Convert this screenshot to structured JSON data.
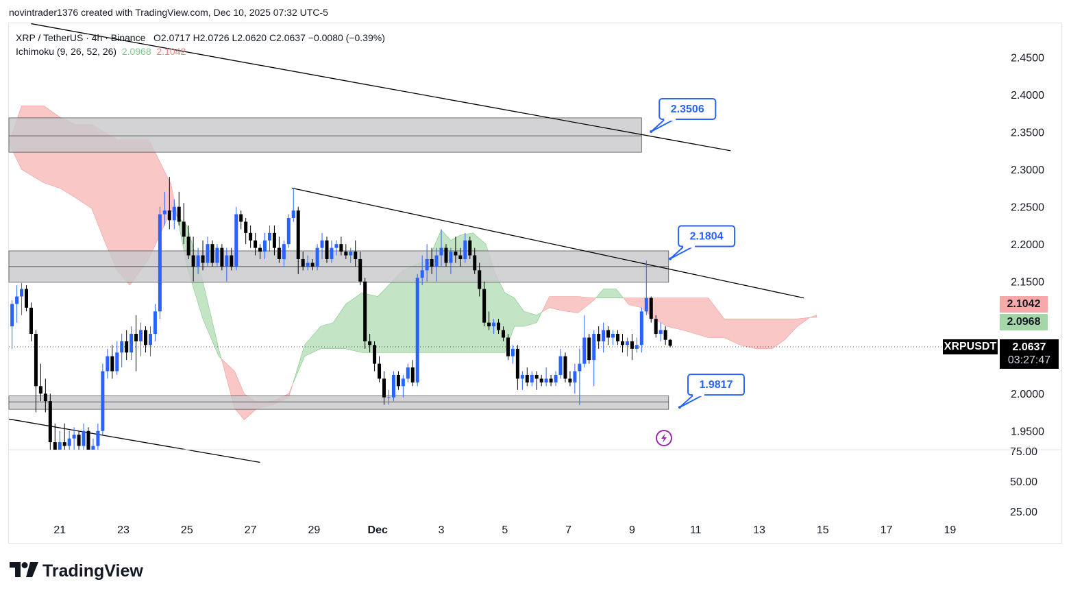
{
  "credit": "novintrader1376 created with TradingView.com, Dec 10, 2025 07:32 UTC-5",
  "legend": {
    "symbol_line": "XRP / TetherUS · 4h · Binance",
    "ohlc": "O2.0717  H2.0726  L2.0620  C2.0637  −0.0080 (−0.39%)",
    "ichimoku_name": "Ichimoku (9, 26, 52, 26)",
    "ichimoku_a": "2.0968",
    "ichimoku_b": "2.1042"
  },
  "price_labels": {
    "span_b": "2.1042",
    "span_a": "2.0968",
    "ticker": "XRPUSDT",
    "last": "2.0637",
    "countdown": "03:27:47"
  },
  "logo": "TradingView",
  "colors": {
    "up": "#2962ff",
    "down": "#000000",
    "cloud_bull": "#a5d6a7",
    "cloud_bear": "#f7a9a9",
    "zone": "#c8c8cc",
    "callout": "#2962ff"
  },
  "chart_data": {
    "type": "candlestick",
    "title": "XRP / TetherUS · 4h · Binance",
    "y_ticks": [
      "2.4500",
      "2.4000",
      "2.3500",
      "2.3000",
      "2.2500",
      "2.2000",
      "2.1500",
      "2.1000",
      "2.0500",
      "2.0000",
      "1.9500"
    ],
    "y_tick_values": [
      2.45,
      2.4,
      2.35,
      2.3,
      2.25,
      2.2,
      2.15,
      2.1,
      2.05,
      2.0,
      1.95
    ],
    "ylim": [
      1.925,
      2.49
    ],
    "x_ticks": [
      "21",
      "23",
      "25",
      "27",
      "29",
      "Dec",
      "3",
      "5",
      "7",
      "9",
      "11",
      "13",
      "15",
      "17",
      "19"
    ],
    "x_tick_days": [
      -10,
      -8,
      -6,
      -4,
      -2,
      0,
      2,
      4,
      6,
      8,
      10,
      12,
      14,
      16,
      18
    ],
    "xlim_days": [
      -11.6,
      19.5
    ],
    "volume_ticks": [
      "75.00",
      "50.00",
      "25.00"
    ],
    "zones": [
      {
        "low": 2.323,
        "high": 2.369,
        "mid": 2.345,
        "from_day": -11.6,
        "to_day": 8.3
      },
      {
        "low": 2.149,
        "high": 2.191,
        "mid": 2.17,
        "from_day": -11.6,
        "to_day": 9.15
      },
      {
        "low": 1.979,
        "high": 1.997,
        "mid": 1.989,
        "from_day": -11.6,
        "to_day": 9.15
      }
    ],
    "trendlines": [
      {
        "d1": -10.9,
        "p1": 2.495,
        "d2": 11.1,
        "p2": 2.325
      },
      {
        "d1": -2.7,
        "p1": 2.275,
        "d2": 13.4,
        "p2": 2.128
      },
      {
        "d1": -11.6,
        "p1": 1.966,
        "d2": -3.7,
        "p2": 1.908
      }
    ],
    "callouts": [
      {
        "label": "2.3506",
        "day": 8.6,
        "price": 2.3506
      },
      {
        "label": "2.1804",
        "day": 9.2,
        "price": 2.1804
      },
      {
        "label": "1.9817",
        "day": 9.5,
        "price": 1.9817
      }
    ],
    "cloud": {
      "days": [
        -11.6,
        -11.2,
        -10.5,
        -10.0,
        -9.5,
        -9.0,
        -8.6,
        -8.2,
        -7.8,
        -7.2,
        -6.5,
        -6.0,
        -5.5,
        -5.0,
        -4.5,
        -4.2,
        -3.8,
        -3.3,
        -2.8,
        -2.3,
        -1.8,
        -1.4,
        -1.0,
        -0.5,
        0.0,
        0.8,
        1.6,
        2.0,
        2.3,
        2.6,
        3.0,
        3.4,
        3.7,
        4.0,
        4.3,
        4.6,
        5.0,
        5.4,
        5.8,
        6.3,
        6.8,
        7.1,
        7.5,
        7.9,
        8.3,
        8.7,
        9.1,
        9.6,
        10.0,
        10.4,
        10.9,
        11.4,
        11.9,
        12.4,
        12.8,
        13.2,
        13.6,
        13.8
      ],
      "span_a": [
        2.335,
        2.3,
        2.282,
        2.275,
        2.262,
        2.248,
        2.205,
        2.165,
        2.145,
        2.18,
        2.245,
        2.225,
        2.15,
        2.06,
        1.98,
        1.965,
        1.98,
        1.985,
        1.995,
        2.065,
        2.09,
        2.095,
        2.12,
        2.135,
        2.13,
        2.165,
        2.18,
        2.219,
        2.205,
        2.212,
        2.215,
        2.2,
        2.16,
        2.135,
        2.128,
        2.11,
        2.105,
        2.115,
        2.111,
        2.108,
        2.125,
        2.14,
        2.14,
        2.119,
        2.115,
        2.1,
        2.09,
        2.085,
        2.08,
        2.075,
        2.075,
        2.065,
        2.06,
        2.06,
        2.072,
        2.09,
        2.102,
        2.102
      ],
      "span_b": [
        2.335,
        2.385,
        2.385,
        2.37,
        2.36,
        2.36,
        2.35,
        2.34,
        2.34,
        2.34,
        2.28,
        2.17,
        2.1,
        2.05,
        2.03,
        2.0,
        1.988,
        1.99,
        2.0,
        2.05,
        2.06,
        2.06,
        2.06,
        2.055,
        2.055,
        2.055,
        2.055,
        2.055,
        2.055,
        2.055,
        2.055,
        2.055,
        2.055,
        2.055,
        2.09,
        2.09,
        2.095,
        2.13,
        2.13,
        2.13,
        2.128,
        2.128,
        2.128,
        2.128,
        2.128,
        2.128,
        2.128,
        2.128,
        2.128,
        2.128,
        2.1,
        2.1,
        2.1,
        2.1,
        2.1,
        2.1,
        2.102,
        2.105
      ]
    },
    "candles": [
      [
        -11.5,
        2.09,
        2.125,
        2.06,
        2.12
      ],
      [
        -11.35,
        2.12,
        2.145,
        2.095,
        2.13
      ],
      [
        -11.2,
        2.13,
        2.148,
        2.105,
        2.14
      ],
      [
        -11.05,
        2.14,
        2.145,
        2.11,
        2.115
      ],
      [
        -10.9,
        2.115,
        2.122,
        2.07,
        2.08
      ],
      [
        -10.75,
        2.08,
        2.085,
        1.975,
        2.01
      ],
      [
        -10.6,
        2.01,
        2.04,
        1.99,
        2.0
      ],
      [
        -10.45,
        2.0,
        2.02,
        1.975,
        1.99
      ],
      [
        -10.3,
        1.99,
        2.0,
        1.92,
        1.935
      ],
      [
        -10.15,
        1.935,
        1.96,
        1.915,
        1.925
      ],
      [
        -10.0,
        1.925,
        1.95,
        1.91,
        1.935
      ],
      [
        -9.85,
        1.935,
        1.96,
        1.92,
        1.93
      ],
      [
        -9.7,
        1.93,
        1.95,
        1.91,
        1.94
      ],
      [
        -9.55,
        1.94,
        1.955,
        1.92,
        1.945
      ],
      [
        -9.4,
        1.945,
        1.95,
        1.915,
        1.93
      ],
      [
        -9.25,
        1.93,
        1.96,
        1.925,
        1.95
      ],
      [
        -9.1,
        1.95,
        1.955,
        1.915,
        1.925
      ],
      [
        -8.95,
        1.925,
        1.94,
        1.915,
        1.93
      ],
      [
        -8.8,
        1.93,
        1.96,
        1.925,
        1.95
      ],
      [
        -8.65,
        1.95,
        2.04,
        1.945,
        2.03
      ],
      [
        -8.5,
        2.03,
        2.06,
        2.02,
        2.05
      ],
      [
        -8.35,
        2.05,
        2.065,
        2.02,
        2.03
      ],
      [
        -8.2,
        2.03,
        2.07,
        2.025,
        2.055
      ],
      [
        -8.05,
        2.055,
        2.08,
        2.035,
        2.07
      ],
      [
        -7.9,
        2.07,
        2.085,
        2.045,
        2.055
      ],
      [
        -7.75,
        2.055,
        2.09,
        2.045,
        2.08
      ],
      [
        -7.6,
        2.08,
        2.105,
        2.03,
        2.07
      ],
      [
        -7.45,
        2.07,
        2.095,
        2.05,
        2.085
      ],
      [
        -7.3,
        2.085,
        2.09,
        2.055,
        2.065
      ],
      [
        -7.15,
        2.065,
        2.09,
        2.05,
        2.08
      ],
      [
        -7.0,
        2.08,
        2.12,
        2.07,
        2.11
      ],
      [
        -6.85,
        2.11,
        2.25,
        2.1,
        2.24
      ],
      [
        -6.7,
        2.24,
        2.27,
        2.225,
        2.245
      ],
      [
        -6.55,
        2.245,
        2.29,
        2.22,
        2.232
      ],
      [
        -6.4,
        2.232,
        2.26,
        2.22,
        2.25
      ],
      [
        -6.25,
        2.25,
        2.27,
        2.225,
        2.23
      ],
      [
        -6.1,
        2.23,
        2.255,
        2.2,
        2.21
      ],
      [
        -5.95,
        2.21,
        2.225,
        2.18,
        2.185
      ],
      [
        -5.8,
        2.185,
        2.21,
        2.15,
        2.17
      ],
      [
        -5.65,
        2.17,
        2.195,
        2.16,
        2.185
      ],
      [
        -5.5,
        2.185,
        2.205,
        2.165,
        2.175
      ],
      [
        -5.35,
        2.175,
        2.21,
        2.17,
        2.2
      ],
      [
        -5.2,
        2.2,
        2.205,
        2.17,
        2.175
      ],
      [
        -5.05,
        2.175,
        2.2,
        2.17,
        2.195
      ],
      [
        -4.9,
        2.195,
        2.2,
        2.165,
        2.17
      ],
      [
        -4.75,
        2.17,
        2.195,
        2.15,
        2.185
      ],
      [
        -4.6,
        2.185,
        2.195,
        2.165,
        2.17
      ],
      [
        -4.45,
        2.17,
        2.25,
        2.165,
        2.24
      ],
      [
        -4.3,
        2.24,
        2.245,
        2.22,
        2.23
      ],
      [
        -4.15,
        2.23,
        2.235,
        2.2,
        2.215
      ],
      [
        -4.0,
        2.215,
        2.225,
        2.195,
        2.205
      ],
      [
        -3.85,
        2.205,
        2.215,
        2.185,
        2.195
      ],
      [
        -3.7,
        2.195,
        2.2,
        2.18,
        2.19
      ],
      [
        -3.55,
        2.19,
        2.215,
        2.18,
        2.205
      ],
      [
        -3.4,
        2.205,
        2.225,
        2.19,
        2.215
      ],
      [
        -3.25,
        2.215,
        2.225,
        2.185,
        2.195
      ],
      [
        -3.1,
        2.195,
        2.21,
        2.175,
        2.18
      ],
      [
        -2.95,
        2.18,
        2.205,
        2.17,
        2.2
      ],
      [
        -2.8,
        2.2,
        2.24,
        2.195,
        2.235
      ],
      [
        -2.65,
        2.235,
        2.275,
        2.23,
        2.245
      ],
      [
        -2.5,
        2.245,
        2.25,
        2.16,
        2.18
      ],
      [
        -2.35,
        2.18,
        2.19,
        2.165,
        2.17
      ],
      [
        -2.2,
        2.17,
        2.185,
        2.165,
        2.175
      ],
      [
        -2.05,
        2.175,
        2.18,
        2.165,
        2.17
      ],
      [
        -1.9,
        2.17,
        2.2,
        2.165,
        2.195
      ],
      [
        -1.75,
        2.195,
        2.215,
        2.18,
        2.205
      ],
      [
        -1.6,
        2.205,
        2.21,
        2.175,
        2.18
      ],
      [
        -1.45,
        2.18,
        2.205,
        2.175,
        2.195
      ],
      [
        -1.3,
        2.195,
        2.205,
        2.185,
        2.2
      ],
      [
        -1.15,
        2.2,
        2.21,
        2.185,
        2.19
      ],
      [
        -1.0,
        2.19,
        2.2,
        2.18,
        2.185
      ],
      [
        -0.85,
        2.185,
        2.195,
        2.175,
        2.19
      ],
      [
        -0.7,
        2.19,
        2.205,
        2.17,
        2.18
      ],
      [
        -0.55,
        2.18,
        2.19,
        2.145,
        2.15
      ],
      [
        -0.4,
        2.15,
        2.155,
        2.06,
        2.07
      ],
      [
        -0.25,
        2.07,
        2.08,
        2.055,
        2.065
      ],
      [
        -0.1,
        2.065,
        2.07,
        2.03,
        2.04
      ],
      [
        0.05,
        2.04,
        2.05,
        2.015,
        2.02
      ],
      [
        0.2,
        2.02,
        2.03,
        1.985,
        1.995
      ],
      [
        0.35,
        1.995,
        2.005,
        1.985,
        1.995
      ],
      [
        0.5,
        1.995,
        2.03,
        1.99,
        2.025
      ],
      [
        0.65,
        2.025,
        2.03,
        2.005,
        2.01
      ],
      [
        0.8,
        2.01,
        2.025,
        1.995,
        2.02
      ],
      [
        0.95,
        2.02,
        2.04,
        2.015,
        2.035
      ],
      [
        1.1,
        2.035,
        2.045,
        2.01,
        2.015
      ],
      [
        1.25,
        2.015,
        2.16,
        2.01,
        2.155
      ],
      [
        1.4,
        2.155,
        2.185,
        2.145,
        2.165
      ],
      [
        1.55,
        2.165,
        2.2,
        2.15,
        2.18
      ],
      [
        1.7,
        2.18,
        2.195,
        2.16,
        2.17
      ],
      [
        1.85,
        2.17,
        2.195,
        2.15,
        2.185
      ],
      [
        2.0,
        2.185,
        2.22,
        2.17,
        2.195
      ],
      [
        2.15,
        2.195,
        2.2,
        2.17,
        2.175
      ],
      [
        2.3,
        2.175,
        2.195,
        2.16,
        2.19
      ],
      [
        2.45,
        2.19,
        2.21,
        2.175,
        2.185
      ],
      [
        2.6,
        2.185,
        2.195,
        2.17,
        2.18
      ],
      [
        2.75,
        2.18,
        2.215,
        2.175,
        2.205
      ],
      [
        2.9,
        2.205,
        2.21,
        2.18,
        2.185
      ],
      [
        3.05,
        2.185,
        2.195,
        2.16,
        2.165
      ],
      [
        3.2,
        2.165,
        2.175,
        2.13,
        2.14
      ],
      [
        3.35,
        2.14,
        2.15,
        2.09,
        2.095
      ],
      [
        3.5,
        2.095,
        2.11,
        2.085,
        2.09
      ],
      [
        3.65,
        2.09,
        2.1,
        2.08,
        2.095
      ],
      [
        3.8,
        2.095,
        2.1,
        2.08,
        2.085
      ],
      [
        3.95,
        2.085,
        2.09,
        2.07,
        2.075
      ],
      [
        4.1,
        2.075,
        2.08,
        2.045,
        2.05
      ],
      [
        4.25,
        2.05,
        2.065,
        2.04,
        2.06
      ],
      [
        4.4,
        2.06,
        2.065,
        2.005,
        2.02
      ],
      [
        4.55,
        2.02,
        2.03,
        2.005,
        2.025
      ],
      [
        4.7,
        2.025,
        2.035,
        2.01,
        2.015
      ],
      [
        4.85,
        2.015,
        2.03,
        2.01,
        2.025
      ],
      [
        5.0,
        2.025,
        2.03,
        2.005,
        2.02
      ],
      [
        5.15,
        2.02,
        2.025,
        2.01,
        2.015
      ],
      [
        5.3,
        2.015,
        2.035,
        2.01,
        2.02
      ],
      [
        5.45,
        2.02,
        2.025,
        2.01,
        2.015
      ],
      [
        5.6,
        2.015,
        2.03,
        2.01,
        2.025
      ],
      [
        5.75,
        2.025,
        2.06,
        2.02,
        2.05
      ],
      [
        5.9,
        2.05,
        2.055,
        2.015,
        2.02
      ],
      [
        6.05,
        2.02,
        2.03,
        2.01,
        2.015
      ],
      [
        6.2,
        2.015,
        2.04,
        2.0,
        2.03
      ],
      [
        6.35,
        2.03,
        2.06,
        1.985,
        2.04
      ],
      [
        6.5,
        2.04,
        2.105,
        2.035,
        2.075
      ],
      [
        6.65,
        2.075,
        2.08,
        2.04,
        2.045
      ],
      [
        6.8,
        2.045,
        2.085,
        2.01,
        2.08
      ],
      [
        6.95,
        2.08,
        2.09,
        2.06,
        2.07
      ],
      [
        7.1,
        2.07,
        2.095,
        2.055,
        2.085
      ],
      [
        7.25,
        2.085,
        2.09,
        2.065,
        2.075
      ],
      [
        7.4,
        2.075,
        2.085,
        2.065,
        2.08
      ],
      [
        7.55,
        2.08,
        2.085,
        2.065,
        2.07
      ],
      [
        7.7,
        2.07,
        2.08,
        2.055,
        2.065
      ],
      [
        7.85,
        2.065,
        2.075,
        2.05,
        2.07
      ],
      [
        8.0,
        2.07,
        2.08,
        2.045,
        2.06
      ],
      [
        8.15,
        2.06,
        2.075,
        2.055,
        2.065
      ],
      [
        8.3,
        2.065,
        2.115,
        2.055,
        2.11
      ],
      [
        8.45,
        2.11,
        2.178,
        2.105,
        2.128
      ],
      [
        8.6,
        2.128,
        2.13,
        2.095,
        2.1
      ],
      [
        8.75,
        2.1,
        2.105,
        2.075,
        2.08
      ],
      [
        8.9,
        2.08,
        2.095,
        2.07,
        2.085
      ],
      [
        9.05,
        2.085,
        2.09,
        2.065,
        2.072
      ],
      [
        9.2,
        2.072,
        2.073,
        2.062,
        2.064
      ]
    ]
  }
}
